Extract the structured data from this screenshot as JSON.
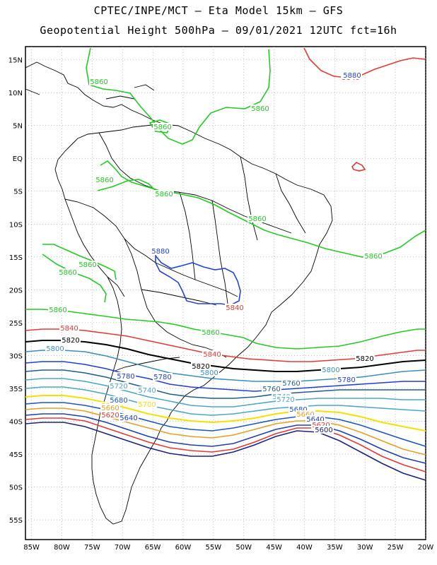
{
  "title_line1": "CPTEC/INPE/MCT –  Eta Model 15km – GFS",
  "title_line2": "Geopotential Height 500hPa – 09/01/2021 12UTC fct=16h",
  "lat_labels": [
    "15N",
    "10N",
    "5N",
    "EQ",
    "5S",
    "10S",
    "15S",
    "20S",
    "25S",
    "30S",
    "35S",
    "40S",
    "45S",
    "50S",
    "55S"
  ],
  "lon_labels": [
    "85W",
    "80W",
    "75W",
    "70W",
    "65W",
    "60W",
    "55W",
    "50W",
    "45W",
    "40W",
    "35W",
    "30W",
    "25W",
    "20W"
  ],
  "contour_colors": {
    "5600": "#1a237e",
    "5620": "#e53935",
    "5640": "#1e40af",
    "5660": "#e6a020",
    "5680": "#1a56c4",
    "5700": "#f5e000",
    "5720": "#4ca6c8",
    "5740": "#4ca6c8",
    "5760": "#1f5f8b",
    "5780": "#1f3fd8",
    "5800": "#3a8fbf",
    "5820": "#000000",
    "5840": "#e53935",
    "5860": "#22cc22",
    "5880": "#2244dd"
  },
  "contour_labels": [
    {
      "text": "5840",
      "level": "5840"
    },
    {
      "text": "5860",
      "level": "5860"
    },
    {
      "text": "5860",
      "level": "5860"
    },
    {
      "text": "5860",
      "level": "5860"
    },
    {
      "text": "5860",
      "level": "5860"
    },
    {
      "text": "5860",
      "level": "5860"
    },
    {
      "text": "5860",
      "level": "5860"
    },
    {
      "text": "5860",
      "level": "5860"
    },
    {
      "text": "5860",
      "level": "5860"
    },
    {
      "text": "5860",
      "level": "5860"
    },
    {
      "text": "5860",
      "level": "5860"
    },
    {
      "text": "5860",
      "level": "5860"
    },
    {
      "text": "5880",
      "level": "5880"
    },
    {
      "text": "5880",
      "level": "5880"
    },
    {
      "text": "5840",
      "level": "5840"
    },
    {
      "text": "5840",
      "level": "5840"
    },
    {
      "text": "5840",
      "level": "5840"
    },
    {
      "text": "5820",
      "level": "5820"
    },
    {
      "text": "5820",
      "level": "5820"
    },
    {
      "text": "5820",
      "level": "5820"
    },
    {
      "text": "5800",
      "level": "5800"
    },
    {
      "text": "5800",
      "level": "5800"
    },
    {
      "text": "5800",
      "level": "5800"
    },
    {
      "text": "5780",
      "level": "5780"
    },
    {
      "text": "5780",
      "level": "5780"
    },
    {
      "text": "5780",
      "level": "5780"
    },
    {
      "text": "5760",
      "level": "5760"
    },
    {
      "text": "5760",
      "level": "5760"
    },
    {
      "text": "5740",
      "level": "5740"
    },
    {
      "text": "5740",
      "level": "5740"
    },
    {
      "text": "5720",
      "level": "5720"
    },
    {
      "text": "5720",
      "level": "5720"
    },
    {
      "text": "5700",
      "level": "5700"
    },
    {
      "text": "5700",
      "level": "5700"
    },
    {
      "text": "5680",
      "level": "5680"
    },
    {
      "text": "5680",
      "level": "5680"
    },
    {
      "text": "5660",
      "level": "5660"
    },
    {
      "text": "5660",
      "level": "5660"
    },
    {
      "text": "5640",
      "level": "5640"
    },
    {
      "text": "5640",
      "level": "5640"
    },
    {
      "text": "5620",
      "level": "5620"
    },
    {
      "text": "5620",
      "level": "5620"
    },
    {
      "text": "5600",
      "level": "5600"
    }
  ]
}
